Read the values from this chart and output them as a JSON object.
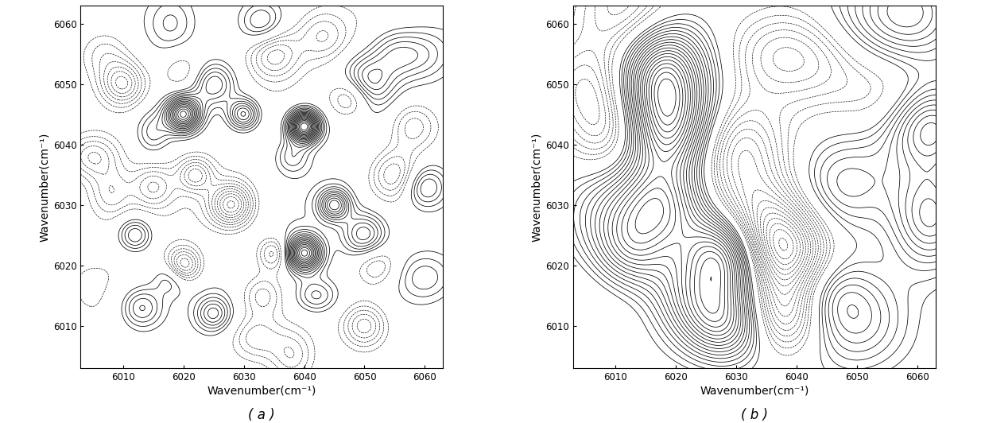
{
  "title_a": "( a )",
  "title_b": "( b )",
  "xlabel": "Wavenumber(cm⁻¹)",
  "ylabel": "Wavenumber(cm⁻¹)",
  "xmin": 6003,
  "xmax": 6063,
  "ymin": 6003,
  "ymax": 6063,
  "xticks": [
    6010,
    6020,
    6030,
    6040,
    6050,
    6060
  ],
  "yticks": [
    6010,
    6020,
    6030,
    6040,
    6050,
    6060
  ],
  "n_levels": 40,
  "figsize": [
    12.39,
    5.32
  ],
  "dpi": 100,
  "peaks_a": [
    [
      6020,
      6045,
      4.0,
      2.0,
      2.0
    ],
    [
      6040,
      6043,
      5.0,
      1.8,
      1.8
    ],
    [
      6040,
      6022,
      4.0,
      2.0,
      2.0
    ],
    [
      6028,
      6030,
      -2.5,
      2.5,
      2.5
    ],
    [
      6020,
      6020,
      -2.0,
      2.0,
      2.0
    ],
    [
      6050,
      6050,
      2.0,
      3.0,
      3.0
    ],
    [
      6010,
      6050,
      -1.8,
      2.5,
      2.5
    ],
    [
      6050,
      6010,
      -1.5,
      2.5,
      2.5
    ],
    [
      6013,
      6013,
      1.5,
      2.5,
      2.5
    ],
    [
      6045,
      6030,
      2.5,
      1.8,
      1.8
    ],
    [
      6030,
      6045,
      2.2,
      1.8,
      1.8
    ],
    [
      6055,
      6035,
      -1.5,
      3.0,
      3.0
    ],
    [
      6035,
      6055,
      -1.5,
      3.0,
      3.0
    ],
    [
      6025,
      6012,
      1.5,
      2.0,
      2.0
    ],
    [
      6012,
      6025,
      1.5,
      2.0,
      2.0
    ],
    [
      6058,
      6043,
      -1.2,
      3.0,
      3.0
    ],
    [
      6043,
      6058,
      -1.0,
      3.0,
      3.0
    ],
    [
      6015,
      6033,
      -1.2,
      2.5,
      2.5
    ],
    [
      6033,
      6015,
      -1.0,
      2.5,
      2.5
    ],
    [
      6060,
      6018,
      1.0,
      3.5,
      3.0
    ],
    [
      6018,
      6060,
      0.9,
      3.0,
      3.5
    ],
    [
      6005,
      6038,
      -1.3,
      3.0,
      2.5
    ],
    [
      6038,
      6005,
      -1.0,
      2.5,
      3.0
    ],
    [
      6032,
      6008,
      -1.0,
      3.0,
      2.5
    ],
    [
      6008,
      6032,
      -1.0,
      2.5,
      3.0
    ],
    [
      6050,
      6025,
      1.8,
      2.5,
      2.5
    ],
    [
      6025,
      6050,
      1.6,
      2.5,
      2.5
    ],
    [
      6042,
      6015,
      1.2,
      2.5,
      2.0
    ],
    [
      6015,
      6042,
      1.0,
      2.0,
      2.5
    ],
    [
      6055,
      6055,
      1.2,
      3.0,
      3.0
    ],
    [
      6022,
      6035,
      -1.5,
      2.0,
      2.0
    ],
    [
      6035,
      6022,
      -1.4,
      2.0,
      2.0
    ],
    [
      6048,
      6048,
      -1.8,
      2.5,
      2.5
    ],
    [
      6018,
      6018,
      1.0,
      2.0,
      2.0
    ],
    [
      6060,
      6055,
      0.8,
      3.0,
      3.0
    ],
    [
      6060,
      6033,
      1.5,
      2.5,
      2.5
    ],
    [
      6033,
      6060,
      1.2,
      2.5,
      2.5
    ],
    [
      6007,
      6055,
      -0.8,
      3.0,
      3.0
    ],
    [
      6038,
      6038,
      1.0,
      2.0,
      2.0
    ],
    [
      6052,
      6020,
      -1.0,
      2.5,
      2.5
    ],
    [
      6020,
      6052,
      -0.8,
      2.5,
      2.5
    ]
  ],
  "peaks_b": [
    [
      6018,
      6052,
      4.5,
      5.0,
      6.0
    ],
    [
      6018,
      6042,
      4.0,
      5.5,
      5.5
    ],
    [
      6018,
      6030,
      3.0,
      5.0,
      5.0
    ],
    [
      6028,
      6022,
      4.5,
      5.0,
      5.0
    ],
    [
      6028,
      6010,
      3.0,
      5.0,
      4.5
    ],
    [
      6038,
      6022,
      -3.5,
      5.0,
      5.0
    ],
    [
      6038,
      6012,
      -2.5,
      4.5,
      4.5
    ],
    [
      6033,
      6030,
      -2.0,
      6.0,
      6.0
    ],
    [
      6010,
      6042,
      -2.2,
      5.0,
      5.0
    ],
    [
      6010,
      6028,
      1.8,
      6.0,
      6.0
    ],
    [
      6050,
      6010,
      1.5,
      6.0,
      6.0
    ],
    [
      6058,
      6062,
      2.5,
      6.0,
      6.0
    ],
    [
      6062,
      6043,
      3.0,
      5.0,
      5.0
    ],
    [
      6062,
      6028,
      2.5,
      4.5,
      6.0
    ],
    [
      6012,
      6062,
      -2.0,
      6.0,
      6.0
    ],
    [
      6023,
      6015,
      1.8,
      5.0,
      4.5
    ],
    [
      6043,
      6055,
      -1.5,
      6.0,
      5.5
    ],
    [
      6048,
      6033,
      1.5,
      6.0,
      5.5
    ],
    [
      6013,
      6022,
      2.0,
      4.5,
      4.5
    ],
    [
      6005,
      6050,
      -1.5,
      5.0,
      5.0
    ],
    [
      6035,
      6025,
      -1.5,
      5.0,
      5.0
    ],
    [
      6055,
      6048,
      -1.2,
      6.0,
      5.0
    ],
    [
      6035,
      6055,
      -1.0,
      5.0,
      5.0
    ],
    [
      6045,
      6015,
      1.3,
      5.0,
      4.5
    ],
    [
      6030,
      6040,
      -1.8,
      5.0,
      5.0
    ],
    [
      6048,
      6060,
      1.0,
      5.5,
      5.5
    ]
  ]
}
